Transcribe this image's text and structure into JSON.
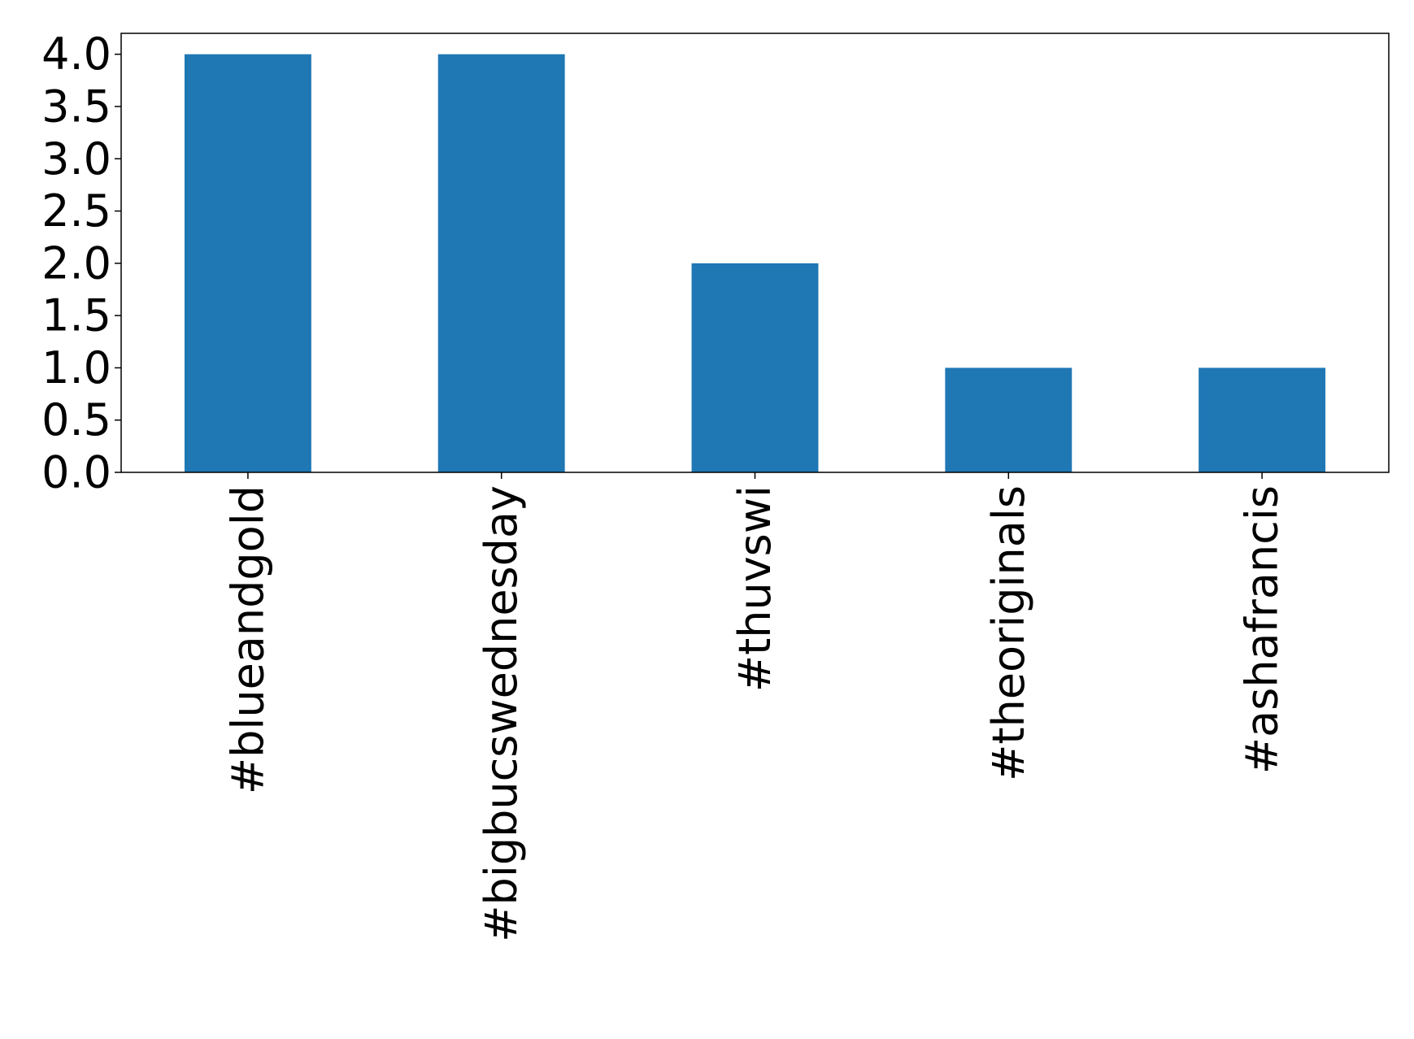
{
  "chart_data": {
    "type": "bar",
    "categories": [
      "#blueandgold",
      "#bigbucswednesday",
      "#thuvswi",
      "#theoriginals",
      "#ashafrancis"
    ],
    "values": [
      4,
      4,
      2,
      1,
      1
    ],
    "color": "#1f77b4",
    "ylim": [
      0,
      4.2
    ],
    "yticks": [
      {
        "value": 0,
        "label": "0.0"
      },
      {
        "value": 0.5,
        "label": "0.5"
      },
      {
        "value": 1,
        "label": "1.0"
      },
      {
        "value": 1.5,
        "label": "1.5"
      },
      {
        "value": 2,
        "label": "2.0"
      },
      {
        "value": 2.5,
        "label": "2.5"
      },
      {
        "value": 3,
        "label": "3.0"
      },
      {
        "value": 3.5,
        "label": "3.5"
      },
      {
        "value": 4,
        "label": "4.0"
      }
    ],
    "grid": false
  }
}
